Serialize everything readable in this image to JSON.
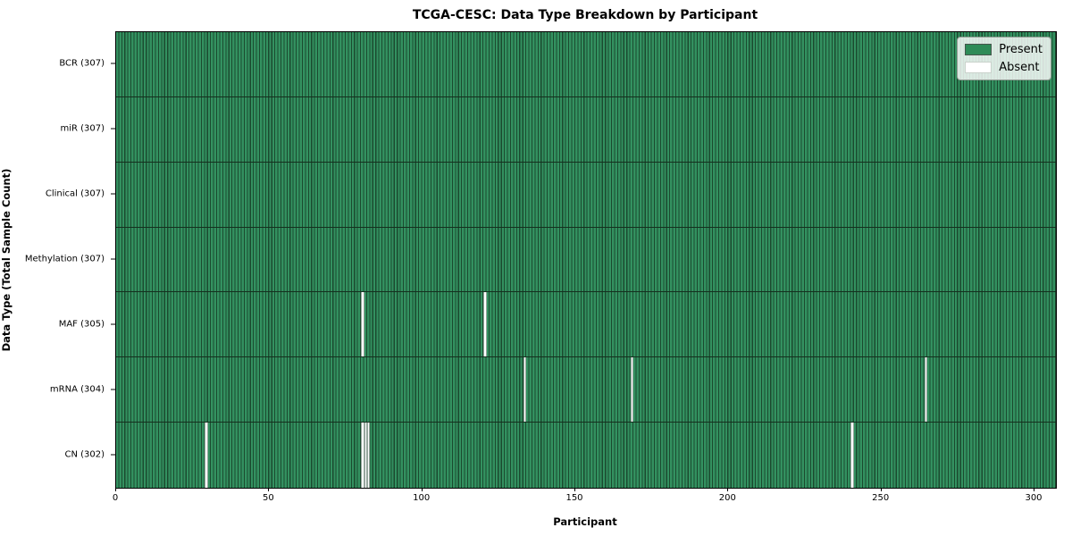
{
  "chart_data": {
    "type": "heatmap",
    "title": "TCGA-CESC: Data Type Breakdown by Participant",
    "xlabel": "Participant",
    "ylabel": "Data Type (Total Sample Count)",
    "x_ticks": [
      0,
      50,
      100,
      150,
      200,
      250,
      300
    ],
    "x_max": 307,
    "n_participants": 307,
    "grid": false,
    "rows": [
      {
        "label": "BCR (307)",
        "data_type": "BCR",
        "present_count": 307,
        "absent_participants": []
      },
      {
        "label": "miR (307)",
        "data_type": "miR",
        "present_count": 307,
        "absent_participants": []
      },
      {
        "label": "Clinical (307)",
        "data_type": "Clinical",
        "present_count": 307,
        "absent_participants": []
      },
      {
        "label": "Methylation (307)",
        "data_type": "Methylation",
        "present_count": 307,
        "absent_participants": []
      },
      {
        "label": "MAF (305)",
        "data_type": "MAF",
        "present_count": 305,
        "absent_participants": [
          80,
          120
        ]
      },
      {
        "label": "mRNA (304)",
        "data_type": "mRNA",
        "present_count": 304,
        "absent_participants": [
          133,
          168,
          264
        ]
      },
      {
        "label": "CN (302)",
        "data_type": "CN",
        "present_count": 302,
        "absent_participants": [
          29,
          80,
          81,
          82,
          240
        ]
      }
    ],
    "legend": {
      "position": "upper right",
      "entries": [
        {
          "label": "Present",
          "color": "#2e8b57"
        },
        {
          "label": "Absent",
          "color": "#ffffff"
        }
      ]
    },
    "colors": {
      "present": "#2e8b57",
      "absent": "#ffffff",
      "bar_edge": "#1b4a2f",
      "row_divider": "#14301e"
    }
  }
}
